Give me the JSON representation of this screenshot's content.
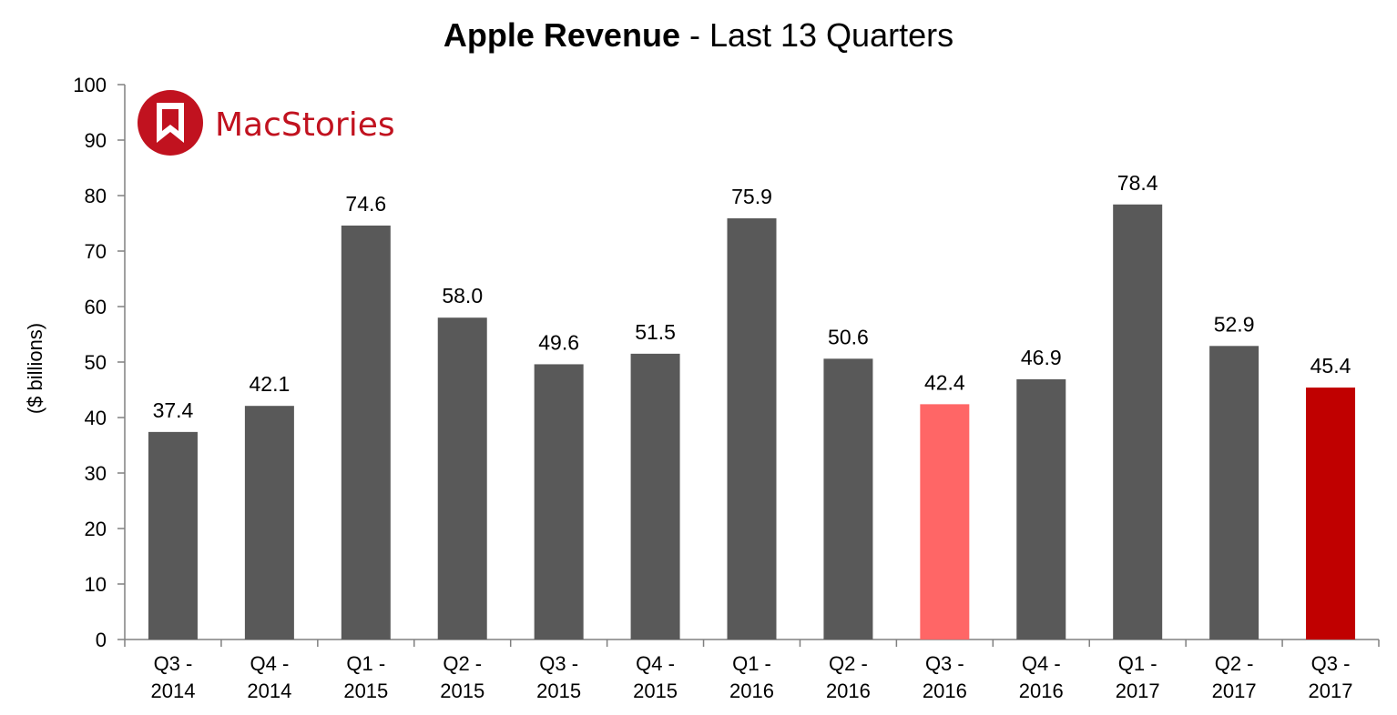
{
  "title": {
    "bold": "Apple Revenue",
    "rest": " - Last 13 Quarters"
  },
  "logo": {
    "text": "MacStories",
    "icon": "bookmark-icon",
    "color": "#c1121f"
  },
  "colors": {
    "default_bar": "#595959",
    "year_ago_bar": "#ff6666",
    "current_bar": "#c00000"
  },
  "chart_data": {
    "type": "bar",
    "title": "Apple Revenue - Last 13 Quarters",
    "ylabel": "($ billions)",
    "xlabel": "",
    "ylim": [
      0,
      100
    ],
    "yticks": [
      0,
      10,
      20,
      30,
      40,
      50,
      60,
      70,
      80,
      90,
      100
    ],
    "grid": false,
    "legend": "none",
    "categories": [
      [
        "Q3 -",
        "2014"
      ],
      [
        "Q4 -",
        "2014"
      ],
      [
        "Q1 -",
        "2015"
      ],
      [
        "Q2 -",
        "2015"
      ],
      [
        "Q3 -",
        "2015"
      ],
      [
        "Q4 -",
        "2015"
      ],
      [
        "Q1 -",
        "2016"
      ],
      [
        "Q2 -",
        "2016"
      ],
      [
        "Q3 -",
        "2016"
      ],
      [
        "Q4 -",
        "2016"
      ],
      [
        "Q1 -",
        "2017"
      ],
      [
        "Q2 -",
        "2017"
      ],
      [
        "Q3 -",
        "2017"
      ]
    ],
    "values": [
      37.4,
      42.1,
      74.6,
      58.0,
      49.6,
      51.5,
      75.9,
      50.6,
      42.4,
      46.9,
      78.4,
      52.9,
      45.4
    ],
    "value_labels": [
      "37.4",
      "42.1",
      "74.6",
      "58.0",
      "49.6",
      "51.5",
      "75.9",
      "50.6",
      "42.4",
      "46.9",
      "78.4",
      "52.9",
      "45.4"
    ],
    "bar_colors": [
      "default_bar",
      "default_bar",
      "default_bar",
      "default_bar",
      "default_bar",
      "default_bar",
      "default_bar",
      "default_bar",
      "year_ago_bar",
      "default_bar",
      "default_bar",
      "default_bar",
      "current_bar"
    ]
  }
}
